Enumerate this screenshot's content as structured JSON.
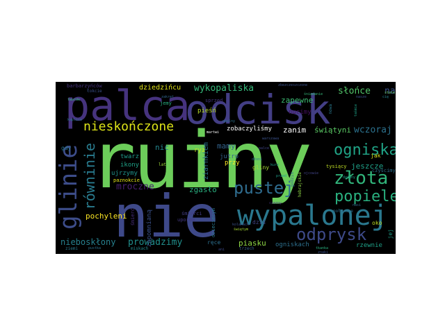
{
  "word_cloud": {
    "background": "#000000",
    "words": [
      {
        "text": "ruiny",
        "color": "#6ccd5a"
      },
      {
        "text": "palca",
        "color": "#46337e"
      },
      {
        "text": "odcisk",
        "color": "#433e85"
      },
      {
        "text": "nie",
        "color": "#3e4989"
      },
      {
        "text": "wypalonej",
        "color": "#2a788e"
      },
      {
        "text": "glinie",
        "color": "#3d4d8a"
      },
      {
        "text": "równinie",
        "color": "#297b8e"
      },
      {
        "text": "nieskończone",
        "color": "#dde318"
      },
      {
        "text": "złota",
        "color": "#31b57b"
      },
      {
        "text": "pustej",
        "color": "#2f6c8e"
      },
      {
        "text": "ogniska",
        "color": "#20a386"
      },
      {
        "text": "popiele",
        "color": "#2ab07f"
      },
      {
        "text": "odprysk",
        "color": "#3e4a89"
      },
      {
        "text": "wykopaliska",
        "color": "#35b779"
      },
      {
        "text": "słońce",
        "color": "#52c569"
      },
      {
        "text": "nad",
        "color": "#3b528b"
      },
      {
        "text": "zapewne",
        "color": "#3dbc74"
      },
      {
        "text": "dziedzińcu",
        "color": "#e2e418"
      },
      {
        "text": "wczoraj",
        "color": "#2c728e"
      },
      {
        "text": "zanim",
        "color": "#ffffff"
      },
      {
        "text": "świątyni",
        "color": "#5ac864"
      },
      {
        "text": "zobaczyliśmy",
        "color": "#ffffff"
      },
      {
        "text": "mamy",
        "color": "#33638d"
      },
      {
        "text": "nic",
        "color": "#24868e"
      },
      {
        "text": "jeszcze",
        "color": "#1fa088"
      },
      {
        "text": "mroczne",
        "color": "#481f70"
      },
      {
        "text": "zgasło",
        "color": "#29af7f"
      },
      {
        "text": "pochyleni",
        "color": "#fde725"
      },
      {
        "text": "nieboskłony",
        "color": "#27808e"
      },
      {
        "text": "prowadzimy",
        "color": "#218f8d"
      },
      {
        "text": "piasku",
        "color": "#8fd744"
      },
      {
        "text": "ogniskach",
        "color": "#2d708e"
      },
      {
        "text": "rzewnie",
        "color": "#1fa188"
      },
      {
        "text": "ziarnkiem",
        "color": "#2c728e"
      },
      {
        "text": "twarz",
        "color": "#1f9a8a"
      },
      {
        "text": "ryz",
        "color": "#cae11f"
      },
      {
        "text": "jutro",
        "color": "#33638d"
      },
      {
        "text": "przy",
        "color": "#fde725"
      },
      {
        "text": "ikony",
        "color": "#1fa187"
      },
      {
        "text": "ujrzymy",
        "color": "#20928c"
      },
      {
        "text": "pieśń",
        "color": "#bade28"
      },
      {
        "text": "nucimy",
        "color": "#471063"
      },
      {
        "text": "jemy",
        "color": "#27ad81"
      },
      {
        "text": "gdy",
        "color": "#2a768e"
      },
      {
        "text": "jak",
        "color": "#d8e219"
      },
      {
        "text": "oko",
        "color": "#c2df23"
      },
      {
        "text": "ręce",
        "color": "#2d708e"
      },
      {
        "text": "dziś",
        "color": "#404688"
      },
      {
        "text": "gliny",
        "color": "#aadc32"
      },
      {
        "text": "tysiący",
        "color": "#c0df25"
      },
      {
        "text": "czyścimy",
        "color": "#2d708e"
      },
      {
        "text": "poławane",
        "color": "#2d708e"
      },
      {
        "text": "jej",
        "color": "#1f9e89"
      },
      {
        "text": "dzieciecym",
        "color": "#2a788e"
      },
      {
        "text": "zapomnianą",
        "color": "#3b528b"
      },
      {
        "text": "śmierć",
        "color": "#472d7b"
      },
      {
        "text": "śmierci",
        "color": "#433e85"
      },
      {
        "text": "uporem",
        "color": "#443983"
      },
      {
        "text": "paznokcie",
        "color": "#e5e419"
      },
      {
        "text": "ziemi",
        "color": "#2a788e"
      },
      {
        "text": "miskach",
        "color": "#23898e"
      },
      {
        "text": "trzech",
        "color": "#355f8d"
      },
      {
        "text": "barbarzyńców",
        "color": "#46337e"
      },
      {
        "text": "łokcie",
        "color": "#3b528b"
      },
      {
        "text": "śniadanie",
        "color": "#35b779"
      },
      {
        "text": "sprzed",
        "color": "#453781"
      },
      {
        "text": "nowa",
        "color": "#2a788e"
      },
      {
        "text": "lat",
        "color": "#a0da39"
      },
      {
        "text": "kolanach",
        "color": "#3b528b"
      },
      {
        "text": "świętym",
        "color": "#a8db34"
      },
      {
        "text": "zbezczeszczone",
        "color": "#3b528b"
      },
      {
        "text": "cię",
        "color": "#25848e"
      },
      {
        "text": "taśmie",
        "color": "#1fa188"
      },
      {
        "text": "kaplice",
        "color": "#2a788e"
      },
      {
        "text": "twarde",
        "color": "#35b779"
      },
      {
        "text": "nasze",
        "color": "#3b528b"
      },
      {
        "text": "palce",
        "color": "#404688"
      },
      {
        "text": "dłoni",
        "color": "#2c728e"
      },
      {
        "text": "godzin",
        "color": "#31688e"
      },
      {
        "text": "hebrajskie",
        "color": "#8fd744"
      },
      {
        "text": "upalny",
        "color": "#2c728e"
      },
      {
        "text": "przed",
        "color": "#1fa088"
      },
      {
        "text": "znaki",
        "color": "#3b528b"
      },
      {
        "text": "tkanka",
        "color": "#29af7f"
      },
      {
        "text": "nasi",
        "color": "#31688e"
      },
      {
        "text": "czarny",
        "color": "#46337e"
      },
      {
        "text": "ojcowie",
        "color": "#414487"
      },
      {
        "text": "ani",
        "color": "#3e4989"
      },
      {
        "text": "dziwny",
        "color": "#1fa188"
      },
      {
        "text": "martwi",
        "color": "#ffffff"
      },
      {
        "text": "zakręt",
        "color": "#31688e"
      },
      {
        "text": "warszawa",
        "color": "#3b528b"
      },
      {
        "text": "kurz",
        "color": "#1f9a8a"
      },
      {
        "text": "stare",
        "color": "#6ccd5a"
      },
      {
        "text": "pustka",
        "color": "#2c728e"
      }
    ]
  }
}
